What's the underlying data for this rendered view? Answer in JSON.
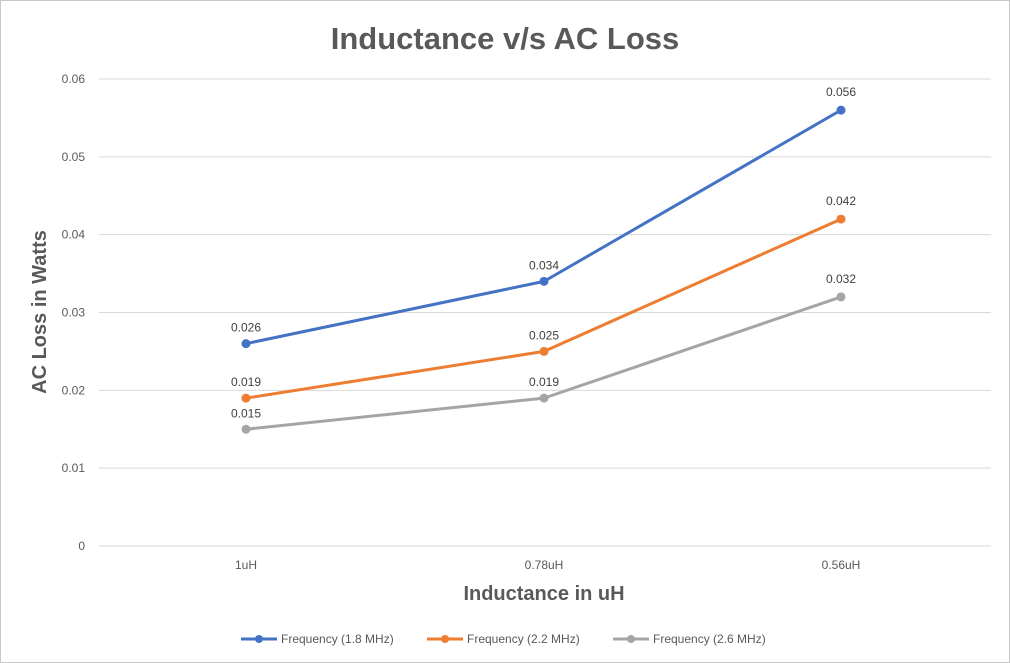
{
  "chart_data": {
    "type": "line",
    "title": "Inductance v/s AC Loss",
    "xlabel": "Inductance in uH",
    "ylabel": "AC Loss in Watts",
    "categories": [
      "1uH",
      "0.78uH",
      "0.56uH"
    ],
    "ylim": [
      0,
      0.06
    ],
    "yticks": [
      0,
      0.01,
      0.02,
      0.03,
      0.04,
      0.05,
      0.06
    ],
    "ytick_labels": [
      "0",
      "0.01",
      "0.02",
      "0.03",
      "0.04",
      "0.05",
      "0.06"
    ],
    "grid": true,
    "legend_position": "bottom",
    "series": [
      {
        "name": "Frequency (1.8 MHz)",
        "color": "#4472C4",
        "values": [
          0.026,
          0.034,
          0.056
        ],
        "labels": [
          "0.026",
          "0.034",
          "0.056"
        ]
      },
      {
        "name": "Frequency (2.2 MHz)",
        "color": "#ED7D31",
        "values": [
          0.019,
          0.025,
          0.042
        ],
        "labels": [
          "0.019",
          "0.025",
          "0.042"
        ]
      },
      {
        "name": "Frequency (2.6 MHz)",
        "color": "#A5A5A5",
        "values": [
          0.015,
          0.019,
          0.032
        ],
        "labels": [
          "0.015",
          "0.019",
          "0.032"
        ]
      }
    ]
  }
}
